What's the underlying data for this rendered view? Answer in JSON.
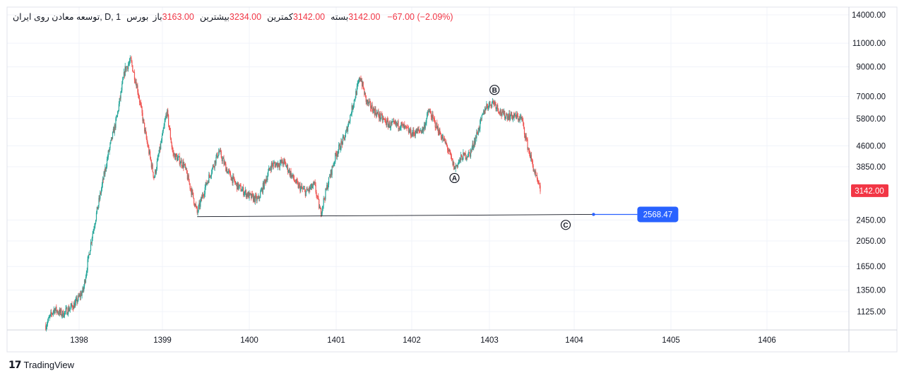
{
  "legend": {
    "symbol": "توسعه معادن روی ایران, D, 1",
    "exchange": "بورس",
    "open_label": "باز",
    "open": "3163.00",
    "high_label": "بیشترین",
    "high": "3234.00",
    "low_label": "کمترین",
    "low": "3142.00",
    "close_label": "بسته",
    "close": "3142.00",
    "change": "−67.00 (−2.09%)"
  },
  "branding": {
    "logo_text": "TradingView",
    "logo_icon": "tradingview-logo-icon"
  },
  "colors": {
    "up": "#26a69a",
    "down": "#ef5350",
    "price_tag": "#f23645",
    "line_tag": "#2962ff",
    "grid": "#f0f3fa"
  },
  "chart_data": {
    "type": "candlestick",
    "title": "",
    "xlabel": "",
    "ylabel": "",
    "y_scale": "log",
    "ylim": [
      880,
      14600
    ],
    "y_ticks": [
      "14000.00",
      "11000.00",
      "9000.00",
      "7000.00",
      "5800.00",
      "4600.00",
      "3850.00",
      "2450.00",
      "2050.00",
      "1650.00",
      "1350.00",
      "1125.00"
    ],
    "x_ticks": [
      "1398",
      "1399",
      "1400",
      "1401",
      "1402",
      "1403",
      "1404",
      "1405",
      "1406"
    ],
    "last_price": "3142.00",
    "series": [
      {
        "values_approx": [
          [
            "1397.6",
            1000
          ],
          [
            "1397.7",
            1150
          ],
          [
            "1397.8",
            1100
          ],
          [
            "1397.95",
            1200
          ],
          [
            "1398.05",
            1350
          ],
          [
            "1398.15",
            2100
          ],
          [
            "1398.25",
            3000
          ],
          [
            "1398.35",
            4300
          ],
          [
            "1398.45",
            5800
          ],
          [
            "1398.55",
            8800
          ],
          [
            "1398.62",
            9500
          ],
          [
            "1398.7",
            7500
          ],
          [
            "1398.8",
            5000
          ],
          [
            "1398.9",
            3500
          ],
          [
            "1399.0",
            5000
          ],
          [
            "1399.05",
            6200
          ],
          [
            "1399.12",
            4300
          ],
          [
            "1399.25",
            3900
          ],
          [
            "1399.35",
            3000
          ],
          [
            "1399.4",
            2600
          ],
          [
            "1399.5",
            3300
          ],
          [
            "1399.65",
            4400
          ],
          [
            "1399.75",
            3700
          ],
          [
            "1399.85",
            3300
          ],
          [
            "1400.0",
            3000
          ],
          [
            "1400.1",
            2900
          ],
          [
            "1400.25",
            3900
          ],
          [
            "1400.4",
            4000
          ],
          [
            "1400.55",
            3300
          ],
          [
            "1400.65",
            3100
          ],
          [
            "1400.75",
            3300
          ],
          [
            "1400.82",
            2600
          ],
          [
            "1400.9",
            3300
          ],
          [
            "1401.0",
            4300
          ],
          [
            "1401.12",
            5000
          ],
          [
            "1401.22",
            6500
          ],
          [
            "1401.32",
            8300
          ],
          [
            "1401.4",
            6700
          ],
          [
            "1401.55",
            6000
          ],
          [
            "1401.7",
            5500
          ],
          [
            "1401.85",
            5500
          ],
          [
            "1402.0",
            5100
          ],
          [
            "1402.15",
            5300
          ],
          [
            "1402.22",
            6200
          ],
          [
            "1402.35",
            5200
          ],
          [
            "1402.45",
            4600
          ],
          [
            "1402.55",
            3800
          ],
          [
            "1402.65",
            4200
          ],
          [
            "1402.75",
            4300
          ],
          [
            "1402.85",
            5200
          ],
          [
            "1402.95",
            6400
          ],
          [
            "1403.05",
            6700
          ],
          [
            "1403.15",
            6000
          ],
          [
            "1403.3",
            5900
          ],
          [
            "1403.38",
            5800
          ],
          [
            "1403.45",
            4600
          ],
          [
            "1403.55",
            3500
          ],
          [
            "1403.6",
            3142
          ]
        ]
      }
    ],
    "annotations": [
      {
        "type": "label",
        "text": "A",
        "x": "1402.55",
        "y": 3500
      },
      {
        "type": "label",
        "text": "B",
        "x": "1403.06",
        "y": 7400
      },
      {
        "type": "label",
        "text": "C",
        "x": "1403.9",
        "y": 2350
      },
      {
        "type": "trendline",
        "from": [
          "1399.4",
          2520
        ],
        "to": [
          "1404.2",
          2568.47
        ],
        "label": "2568.47"
      }
    ]
  }
}
